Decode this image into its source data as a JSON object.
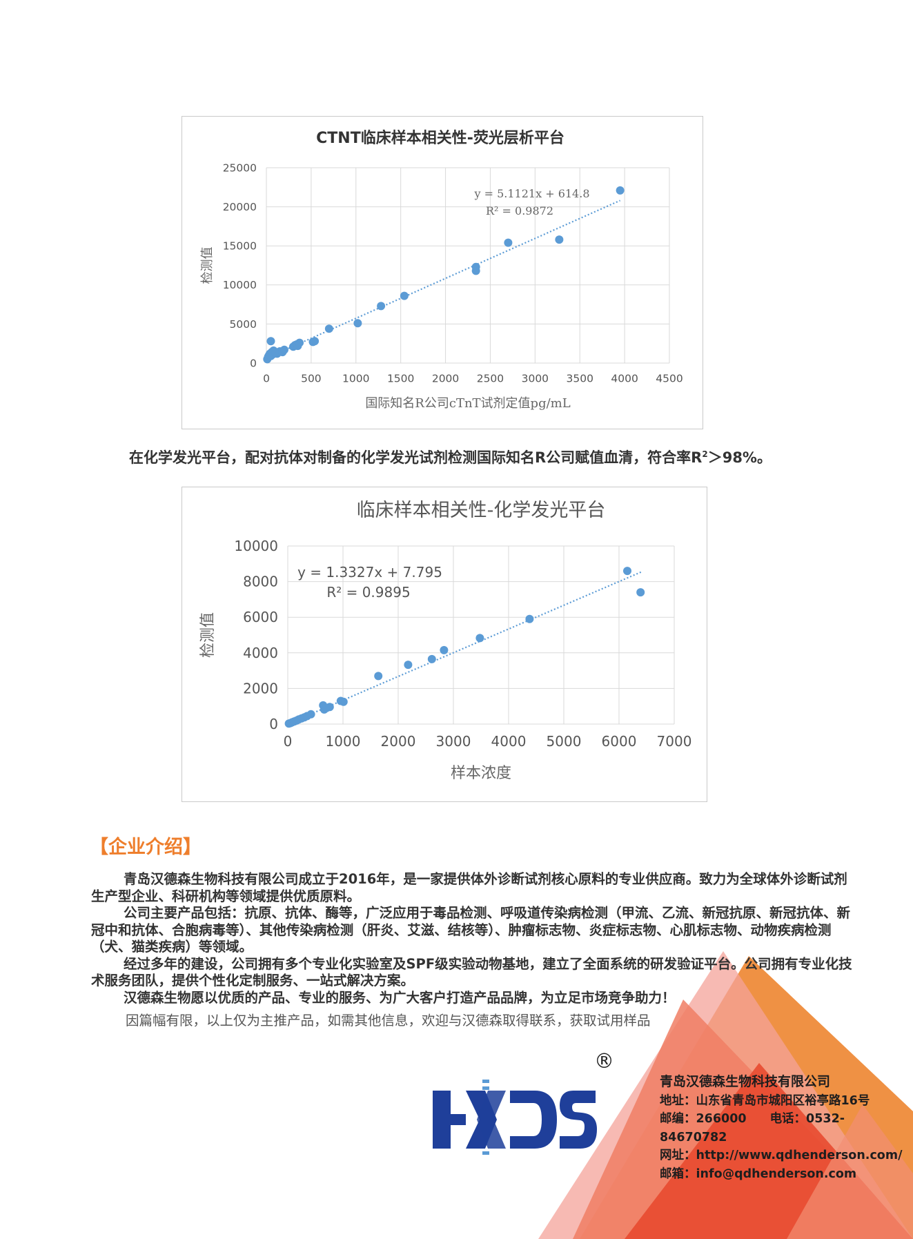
{
  "charts": [
    {
      "type": "scatter",
      "title": "CTNT临床样本相关性-荧光层析平台",
      "xlabel": "国际知名R公司cTnT试剂定值pg/mL",
      "ylabel": "检测值",
      "xlim": [
        0,
        4500
      ],
      "ylim": [
        0,
        25000
      ],
      "x_ticks": [
        "0",
        "500",
        "1000",
        "1500",
        "2000",
        "2500",
        "3000",
        "3500",
        "4000",
        "4500"
      ],
      "y_ticks": [
        "0",
        "5000",
        "10000",
        "15000",
        "20000",
        "25000"
      ],
      "equation": "y = 5.1121x + 614.8",
      "r2": "R² = 0.9872",
      "trend": {
        "slope": 5.1121,
        "intercept": 614.8,
        "x_from": 0,
        "x_to": 3950
      },
      "points": [
        [
          10,
          500
        ],
        [
          20,
          800
        ],
        [
          30,
          1000
        ],
        [
          40,
          1200
        ],
        [
          50,
          900
        ],
        [
          60,
          1400
        ],
        [
          70,
          1100
        ],
        [
          80,
          1600
        ],
        [
          100,
          1300
        ],
        [
          120,
          1200
        ],
        [
          150,
          1500
        ],
        [
          180,
          1400
        ],
        [
          200,
          1700
        ],
        [
          50,
          2800
        ],
        [
          300,
          2100
        ],
        [
          320,
          2300
        ],
        [
          340,
          2400
        ],
        [
          350,
          2200
        ],
        [
          370,
          2600
        ],
        [
          520,
          2700
        ],
        [
          540,
          2800
        ],
        [
          700,
          4400
        ],
        [
          1020,
          5100
        ],
        [
          1280,
          7300
        ],
        [
          1540,
          8600
        ],
        [
          2340,
          11800
        ],
        [
          2340,
          12300
        ],
        [
          2700,
          15400
        ],
        [
          3270,
          15800
        ],
        [
          3950,
          22100
        ]
      ]
    },
    {
      "type": "scatter",
      "title": "临床样本相关性-化学发光平台",
      "xlabel": "样本浓度",
      "ylabel": "检测值",
      "xlim": [
        0,
        7000
      ],
      "ylim": [
        0,
        10000
      ],
      "x_ticks": [
        "0",
        "1000",
        "2000",
        "3000",
        "4000",
        "5000",
        "6000",
        "7000"
      ],
      "y_ticks": [
        "0",
        "2000",
        "4000",
        "6000",
        "8000",
        "10000"
      ],
      "equation": "y = 1.3327x + 7.795",
      "r2": "R² = 0.9895",
      "trend": {
        "slope": 1.3327,
        "intercept": 7.795,
        "x_from": 0,
        "x_to": 6400
      },
      "points": [
        [
          20,
          30
        ],
        [
          50,
          60
        ],
        [
          80,
          100
        ],
        [
          120,
          150
        ],
        [
          160,
          200
        ],
        [
          200,
          260
        ],
        [
          250,
          320
        ],
        [
          300,
          380
        ],
        [
          350,
          450
        ],
        [
          420,
          550
        ],
        [
          640,
          1050
        ],
        [
          660,
          820
        ],
        [
          700,
          900
        ],
        [
          760,
          960
        ],
        [
          960,
          1300
        ],
        [
          1010,
          1250
        ],
        [
          1640,
          2700
        ],
        [
          2180,
          3330
        ],
        [
          2610,
          3650
        ],
        [
          2830,
          4150
        ],
        [
          3480,
          4830
        ],
        [
          4380,
          5900
        ],
        [
          6150,
          8600
        ],
        [
          6390,
          7400
        ]
      ]
    }
  ],
  "caption": {
    "text_before": "在化学发光平台，配对抗体对制备的化学发光试剂检测国际知名R公司赋值血清，符合率R",
    "sup": "2",
    "text_after": "＞98%。"
  },
  "intro": {
    "heading": "【企业介绍】",
    "paragraphs": [
      "青岛汉德森生物科技有限公司成立于2016年，是一家提供体外诊断试剂核心原料的专业供应商。致力为全球体外诊断试剂生产型企业、科研机构等领域提供优质原料。",
      "公司主要产品包括：抗原、抗体、酶等，广泛应用于毒品检测、呼吸道传染病检测（甲流、乙流、新冠抗原、新冠抗体、新冠中和抗体、合胞病毒等）、其他传染病检测（肝炎、艾滋、结核等）、肿瘤标志物、炎症标志物、心肌标志物、动物疾病检测（犬、猫类疾病）等领域。",
      "经过多年的建设，公司拥有多个专业化实验室及SPF级实验动物基地，建立了全面系统的研发验证平台。公司拥有专业化技术服务团队，提供个性化定制服务、一站式解决方案。",
      "汉德森生物愿以优质的产品、专业的服务、为广大客户打造产品品牌，为立足市场竞争助力！"
    ],
    "closing": "因篇幅有限，以上仅为主推产品，如需其他信息，欢迎与汉德森取得联系，获取试用样品"
  },
  "logo": {
    "text": "HXDS",
    "registered": "®"
  },
  "contact": {
    "company": "青岛汉德森生物科技有限公司",
    "address": "地址：山东省青岛市城阳区裕亭路16号",
    "postcode": "邮编：266000",
    "phone": "电话：0532-84670782",
    "website": "网址：http://www.qdhenderson.com/",
    "email": "邮箱：info@qdhenderson.com"
  },
  "colors": {
    "point": "#5b9bd5",
    "grid": "#d9d9d9",
    "accent_orange": "#ee7e2c",
    "logo_blue": "#1f3f9a"
  }
}
